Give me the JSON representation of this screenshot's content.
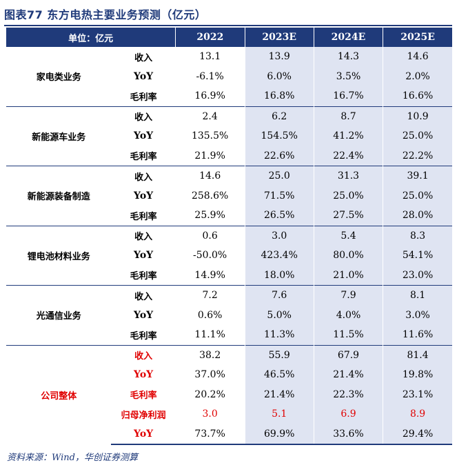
{
  "title": "图表77 东方电热主要业务预测（亿元）",
  "header": {
    "unit": "单位：亿元",
    "years": [
      "2022",
      "2023E",
      "2024E",
      "2025E"
    ]
  },
  "groups": [
    {
      "name": "家电类业务",
      "rows": [
        {
          "metric": "收入",
          "values": [
            "13.1",
            "13.9",
            "14.3",
            "14.6"
          ]
        },
        {
          "metric": "YoY",
          "values": [
            "-6.1%",
            "6.0%",
            "3.5%",
            "2.0%"
          ]
        },
        {
          "metric": "毛利率",
          "values": [
            "16.9%",
            "16.8%",
            "16.7%",
            "16.6%"
          ]
        }
      ]
    },
    {
      "name": "新能源车业务",
      "rows": [
        {
          "metric": "收入",
          "values": [
            "2.4",
            "6.2",
            "8.7",
            "10.9"
          ]
        },
        {
          "metric": "YoY",
          "values": [
            "135.5%",
            "154.5%",
            "41.2%",
            "25.0%"
          ]
        },
        {
          "metric": "毛利率",
          "values": [
            "21.9%",
            "22.6%",
            "22.4%",
            "22.2%"
          ]
        }
      ]
    },
    {
      "name": "新能源装备制造",
      "rows": [
        {
          "metric": "收入",
          "values": [
            "14.6",
            "25.0",
            "31.3",
            "39.1"
          ]
        },
        {
          "metric": "YoY",
          "values": [
            "258.6%",
            "71.5%",
            "25.0%",
            "25.0%"
          ]
        },
        {
          "metric": "毛利率",
          "values": [
            "25.9%",
            "26.5%",
            "27.5%",
            "28.0%"
          ]
        }
      ]
    },
    {
      "name": "锂电池材料业务",
      "rows": [
        {
          "metric": "收入",
          "values": [
            "0.6",
            "3.0",
            "5.4",
            "8.3"
          ]
        },
        {
          "metric": "YoY",
          "values": [
            "-50.0%",
            "423.4%",
            "80.0%",
            "54.1%"
          ]
        },
        {
          "metric": "毛利率",
          "values": [
            "14.9%",
            "18.0%",
            "21.0%",
            "23.0%"
          ]
        }
      ]
    },
    {
      "name": "光通信业务",
      "rows": [
        {
          "metric": "收入",
          "values": [
            "7.2",
            "7.6",
            "7.9",
            "8.1"
          ]
        },
        {
          "metric": "YoY",
          "values": [
            "0.6%",
            "5.0%",
            "4.0%",
            "3.0%"
          ]
        },
        {
          "metric": "毛利率",
          "values": [
            "11.1%",
            "11.3%",
            "11.5%",
            "11.6%"
          ]
        }
      ]
    },
    {
      "name": "公司整体",
      "rows": [
        {
          "metric": "收入",
          "values": [
            "38.2",
            "55.9",
            "67.9",
            "81.4"
          ]
        },
        {
          "metric": "YoY",
          "values": [
            "37.0%",
            "46.5%",
            "21.4%",
            "19.8%"
          ]
        },
        {
          "metric": "毛利率",
          "values": [
            "20.2%",
            "21.4%",
            "22.3%",
            "23.1%"
          ]
        },
        {
          "metric": "归母净利润",
          "values": [
            "3.0",
            "5.1",
            "6.9",
            "8.9"
          ]
        },
        {
          "metric": "YoY",
          "values": [
            "73.7%",
            "69.9%",
            "33.6%",
            "29.4%"
          ]
        }
      ]
    }
  ],
  "source": "资料来源：Wind，华创证券测算",
  "colors": {
    "header_bg": "#1f3a7a",
    "projection_bg": "#dfe4f2",
    "highlight": "#e00000"
  }
}
